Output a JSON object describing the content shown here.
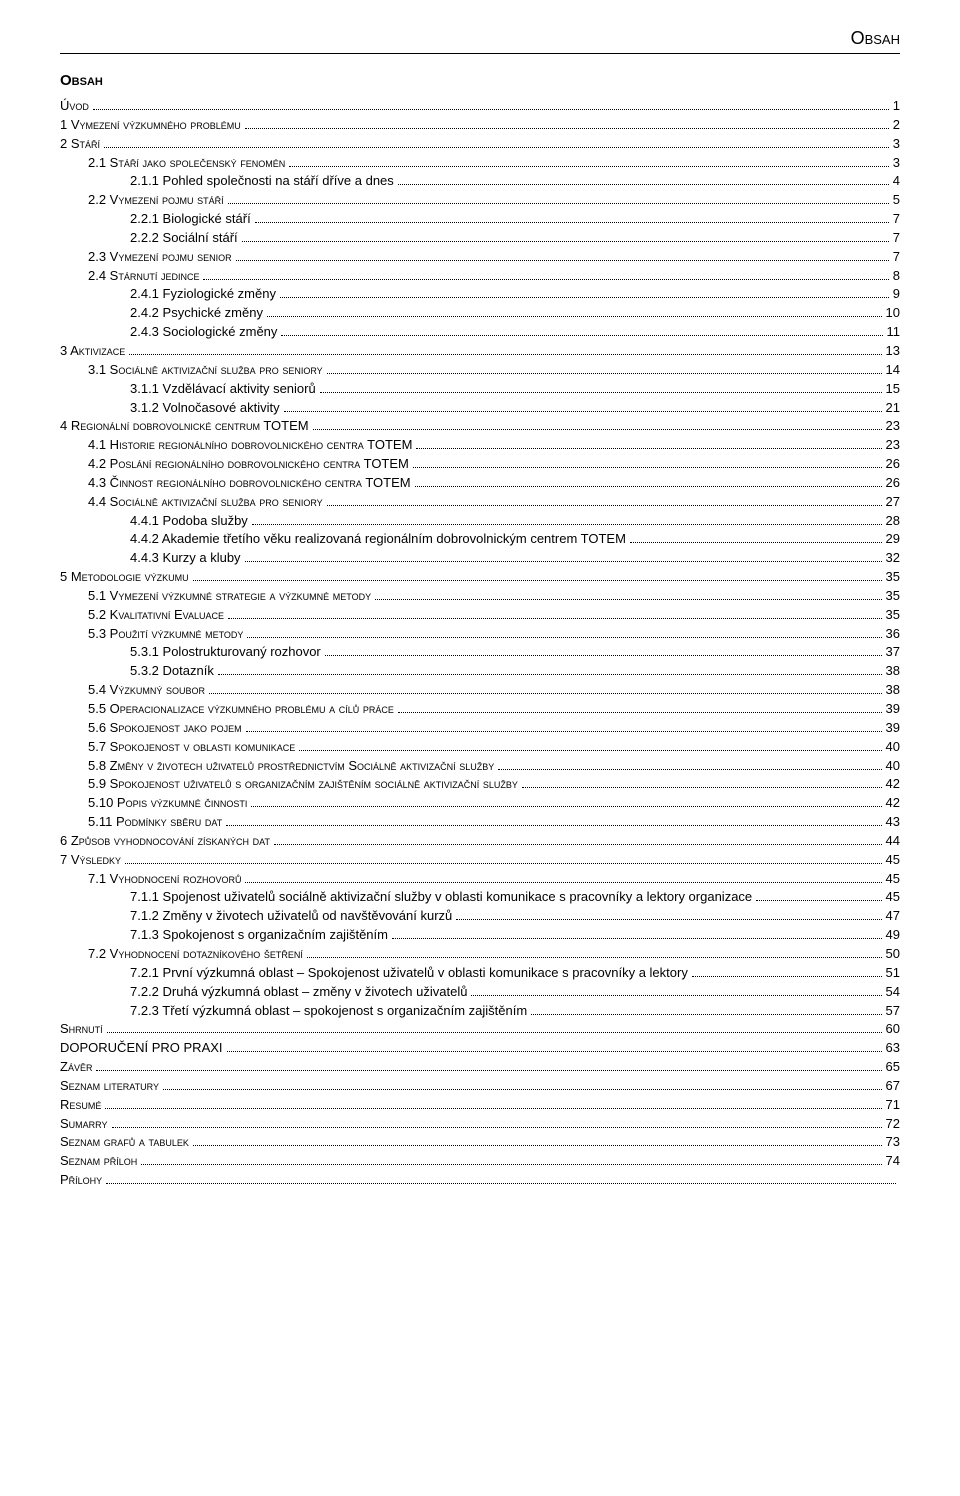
{
  "header_title": "Obsah",
  "section_title": "Obsah",
  "toc": [
    {
      "level": 0,
      "label": "Úvod",
      "page": "1",
      "smallcaps": true
    },
    {
      "level": 0,
      "label": "1   Vymezení výzkumného problému",
      "page": "2",
      "smallcaps": true
    },
    {
      "level": 0,
      "label": "2   Stáří",
      "page": "3",
      "smallcaps": true
    },
    {
      "level": 1,
      "label": "2.1   Stáří jako společenský fenomén",
      "page": "3",
      "smallcaps": true
    },
    {
      "level": 2,
      "label": "2.1.1   Pohled společnosti na stáří dříve a dnes",
      "page": "4",
      "smallcaps": false
    },
    {
      "level": 1,
      "label": "2.2   Vymezení pojmu stáří",
      "page": "5",
      "smallcaps": true
    },
    {
      "level": 2,
      "label": "2.2.1   Biologické stáří",
      "page": "7",
      "smallcaps": false
    },
    {
      "level": 2,
      "label": "2.2.2   Sociální stáří",
      "page": "7",
      "smallcaps": false
    },
    {
      "level": 1,
      "label": "2.3   Vymezení pojmu senior",
      "page": "7",
      "smallcaps": true
    },
    {
      "level": 1,
      "label": "2.4   Stárnutí jedince",
      "page": "8",
      "smallcaps": true
    },
    {
      "level": 2,
      "label": "2.4.1   Fyziologické změny",
      "page": "9",
      "smallcaps": false
    },
    {
      "level": 2,
      "label": "2.4.2   Psychické změny",
      "page": "10",
      "smallcaps": false
    },
    {
      "level": 2,
      "label": "2.4.3   Sociologické změny",
      "page": "11",
      "smallcaps": false
    },
    {
      "level": 0,
      "label": "3   Aktivizace",
      "page": "13",
      "smallcaps": true
    },
    {
      "level": 1,
      "label": "3.1   Sociálně aktivizační služba pro seniory",
      "page": "14",
      "smallcaps": true
    },
    {
      "level": 2,
      "label": "3.1.1   Vzdělávací aktivity seniorů",
      "page": "15",
      "smallcaps": false
    },
    {
      "level": 2,
      "label": "3.1.2   Volnočasové aktivity",
      "page": "21",
      "smallcaps": false
    },
    {
      "level": 0,
      "label": "4   Regionální dobrovolnické centrum TOTEM",
      "page": "23",
      "smallcaps": true
    },
    {
      "level": 1,
      "label": "4.1   Historie regionálního dobrovolnického centra TOTEM",
      "page": "23",
      "smallcaps": true
    },
    {
      "level": 1,
      "label": "4.2   Poslání regionálního dobrovolnického centra TOTEM",
      "page": "26",
      "smallcaps": true
    },
    {
      "level": 1,
      "label": "4.3   Činnost regionálního dobrovolnického centra TOTEM",
      "page": "26",
      "smallcaps": true
    },
    {
      "level": 1,
      "label": "4.4   Sociálně aktivizační služba pro seniory",
      "page": "27",
      "smallcaps": true
    },
    {
      "level": 2,
      "label": "4.4.1   Podoba služby",
      "page": "28",
      "smallcaps": false
    },
    {
      "level": 2,
      "label": "4.4.2   Akademie třetího věku realizovaná regionálním dobrovolnickým centrem TOTEM",
      "page": "29",
      "smallcaps": false
    },
    {
      "level": 2,
      "label": "4.4.3   Kurzy a kluby",
      "page": "32",
      "smallcaps": false
    },
    {
      "level": 0,
      "label": "5   Metodologie výzkumu",
      "page": "35",
      "smallcaps": true
    },
    {
      "level": 1,
      "label": "5.1   Vymezení výzkumné strategie a výzkumné metody",
      "page": "35",
      "smallcaps": true
    },
    {
      "level": 1,
      "label": "5.2   Kvalitativní Evaluace",
      "page": "35",
      "smallcaps": true
    },
    {
      "level": 1,
      "label": "5.3   Použití výzkumné metody",
      "page": "36",
      "smallcaps": true
    },
    {
      "level": 2,
      "label": "5.3.1   Polostrukturovaný rozhovor",
      "page": "37",
      "smallcaps": false
    },
    {
      "level": 2,
      "label": "5.3.2   Dotazník",
      "page": "38",
      "smallcaps": false
    },
    {
      "level": 1,
      "label": "5.4   Výzkumný soubor",
      "page": "38",
      "smallcaps": true
    },
    {
      "level": 1,
      "label": "5.5   Operacionalizace výzkumného problému a cílů práce",
      "page": "39",
      "smallcaps": true
    },
    {
      "level": 1,
      "label": "5.6   Spokojenost jako pojem",
      "page": "39",
      "smallcaps": true
    },
    {
      "level": 1,
      "label": "5.7   Spokojenost v oblasti komunikace",
      "page": "40",
      "smallcaps": true
    },
    {
      "level": 1,
      "label": "5.8   Změny v životech uživatelů prostřednictvím Sociálně aktivizační služby",
      "page": "40",
      "smallcaps": true
    },
    {
      "level": 1,
      "label": "5.9   Spokojenost uživatelů s organizačním zajištěním sociálně aktivizační služby",
      "page": "42",
      "smallcaps": true
    },
    {
      "level": 1,
      "label": "5.10 Popis výzkumné činnosti",
      "page": "42",
      "smallcaps": true
    },
    {
      "level": 1,
      "label": "5.11 Podmínky sběru dat",
      "page": "43",
      "smallcaps": true
    },
    {
      "level": 0,
      "label": "6   Způsob vyhodnocování získaných dat",
      "page": "44",
      "smallcaps": true
    },
    {
      "level": 0,
      "label": "7   Výsledky",
      "page": "45",
      "smallcaps": true
    },
    {
      "level": 1,
      "label": "7.1   Vyhodnocení rozhovorů",
      "page": "45",
      "smallcaps": true
    },
    {
      "level": 2,
      "label": "7.1.1   Spojenost uživatelů sociálně aktivizační služby v oblasti komunikace s pracovníky a lektory organizace",
      "page": "45",
      "smallcaps": false,
      "long": true
    },
    {
      "level": 2,
      "label": "7.1.2   Změny v životech uživatelů od navštěvování kurzů",
      "page": "47",
      "smallcaps": false
    },
    {
      "level": 2,
      "label": "7.1.3   Spokojenost s organizačním zajištěním",
      "page": "49",
      "smallcaps": false
    },
    {
      "level": 1,
      "label": "7.2   Vyhodnocení dotazníkového šetření",
      "page": "50",
      "smallcaps": true
    },
    {
      "level": 2,
      "label": "7.2.1   První výzkumná oblast – Spokojenost uživatelů v oblasti komunikace s pracovníky a lektory",
      "page": "51",
      "smallcaps": false
    },
    {
      "level": 2,
      "label": "7.2.2   Druhá výzkumná oblast – změny v životech uživatelů",
      "page": "54",
      "smallcaps": false
    },
    {
      "level": 2,
      "label": "7.2.3   Třetí výzkumná oblast – spokojenost s organizačním zajištěním",
      "page": "57",
      "smallcaps": false
    },
    {
      "level": 0,
      "label": "Shrnutí",
      "page": "60",
      "smallcaps": true
    },
    {
      "level": 0,
      "label": "DOPORUČENÍ PRO PRAXI",
      "page": "63",
      "smallcaps": false
    },
    {
      "level": 0,
      "label": "Závěr",
      "page": "65",
      "smallcaps": true
    },
    {
      "level": 0,
      "label": "Seznam literatury",
      "page": "67",
      "smallcaps": true
    },
    {
      "level": 0,
      "label": "Resumé",
      "page": "71",
      "smallcaps": true
    },
    {
      "level": 0,
      "label": "Sumarry",
      "page": "72",
      "smallcaps": true
    },
    {
      "level": 0,
      "label": "Seznam grafů a tabulek",
      "page": "73",
      "smallcaps": true
    },
    {
      "level": 0,
      "label": "Seznam příloh",
      "page": "74",
      "smallcaps": true
    },
    {
      "level": 0,
      "label": "Přílohy",
      "page": "",
      "smallcaps": true
    }
  ]
}
